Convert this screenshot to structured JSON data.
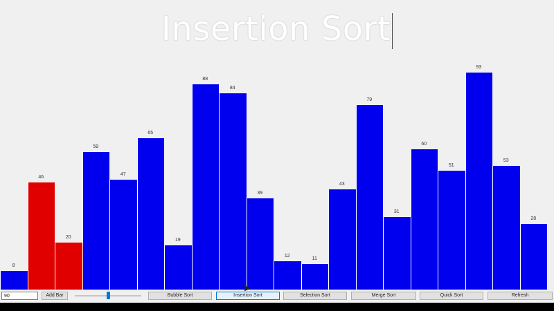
{
  "title": "Insertion Sort",
  "controls": {
    "count_value": "90",
    "add_bar": "Add Bar",
    "slider_level": 0.5,
    "buttons": [
      "Bubble Sort",
      "Insertion Sort",
      "Selection Sort",
      "Merge Sort",
      "Quick Sort",
      "Refresh"
    ],
    "active_button": "Insertion Sort"
  },
  "colors": {
    "default_bar": "#0000ee",
    "highlight_bar": "#e00000",
    "bar_border": "#ffffff"
  },
  "chart_data": {
    "type": "bar",
    "values": [
      8,
      46,
      20,
      59,
      47,
      65,
      19,
      88,
      84,
      39,
      12,
      11,
      43,
      79,
      31,
      60,
      51,
      93,
      53,
      28
    ],
    "highlighted_indices": [
      1,
      2
    ],
    "ylim": [
      0,
      100
    ],
    "grid": false
  }
}
